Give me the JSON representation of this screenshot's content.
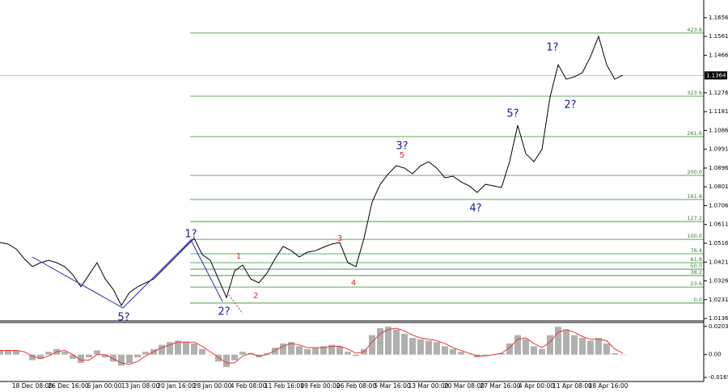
{
  "chart_data": [
    {
      "type": "line",
      "color": "#000000",
      "ylim": [
        1.0124,
        1.1745
      ],
      "yticks": [
        1.1656,
        1.1561,
        1.1466,
        1.1276,
        1.1181,
        1.1086,
        1.0991,
        1.0896,
        1.0801,
        1.0706,
        1.0611,
        1.0516,
        1.0421,
        1.0326,
        1.0231,
        1.0136
      ],
      "current_price": 1.1364,
      "time_labels": [
        "18 Dec 08:00",
        "26 Dec 16:00",
        "6 Jan 00:00",
        "13 Jan 08:00",
        "20 Jan 16:00",
        "28 Jan 00:00",
        "4 Feb 08:00",
        "11 Feb 16:00",
        "19 Feb 00:00",
        "26 Feb 08:00",
        "5 Mar 16:00",
        "13 Mar 00:00",
        "20 Mar 08:00",
        "27 Mar 16:00",
        "4 Apr 00:00",
        "11 Apr 08:00",
        "18 Apr 16:00"
      ],
      "values": [
        1.052,
        1.0512,
        1.0487,
        1.0438,
        1.0398,
        1.0418,
        1.043,
        1.0418,
        1.0398,
        1.0357,
        1.0296,
        1.0357,
        1.0418,
        1.0336,
        1.0283,
        1.0202,
        1.0267,
        1.0296,
        1.0316,
        1.0336,
        1.0377,
        1.0418,
        1.0459,
        1.05,
        1.0541,
        1.0459,
        1.043,
        1.0336,
        1.0242,
        1.0377,
        1.0406,
        1.0336,
        1.0316,
        1.0365,
        1.0438,
        1.05,
        1.0479,
        1.0447,
        1.0471,
        1.0479,
        1.0496,
        1.0512,
        1.052,
        1.0418,
        1.0398,
        1.0541,
        1.0724,
        1.0814,
        1.0867,
        1.0908,
        1.0896,
        1.0867,
        1.0908,
        1.0928,
        1.0896,
        1.0847,
        1.0855,
        1.0826,
        1.0806,
        1.0773,
        1.0814,
        1.0806,
        1.0798,
        1.0928,
        1.1112,
        1.0969,
        1.0928,
        1.099,
        1.1255,
        1.1418,
        1.1345,
        1.1357,
        1.1378,
        1.1459,
        1.1561,
        1.1418,
        1.1345,
        1.1365
      ],
      "fib_levels": [
        {
          "label": "423.6",
          "price": 1.1578
        },
        {
          "label": "323.6",
          "price": 1.1259
        },
        {
          "label": "261.6",
          "price": 1.1055
        },
        {
          "label": "200.0",
          "price": 1.0859
        },
        {
          "label": "161.8",
          "price": 1.0737
        },
        {
          "label": "127.2",
          "price": 1.0626
        },
        {
          "label": "100.0",
          "price": 1.0536
        },
        {
          "label": "76.4",
          "price": 1.0463
        },
        {
          "label": "61.8",
          "price": 1.0418
        },
        {
          "label": "50.0",
          "price": 1.0385
        },
        {
          "label": "38.2",
          "price": 1.0353
        },
        {
          "label": "23.6",
          "price": 1.0295
        },
        {
          "label": "0.0",
          "price": 1.0214
        }
      ],
      "fib_color": "#2e8b2e",
      "wave_labels": [
        {
          "text": "1?",
          "color": "#1a1aa6"
        },
        {
          "text": "2?",
          "color": "#1a1aa6"
        },
        {
          "text": "5?",
          "color": "#1a1aa6"
        },
        {
          "text": "1",
          "color": "#d32f2f"
        },
        {
          "text": "2",
          "color": "#d32f2f"
        },
        {
          "text": "3",
          "color": "#d32f2f"
        },
        {
          "text": "4",
          "color": "#d32f2f"
        },
        {
          "text": "5",
          "color": "#d32f2f"
        },
        {
          "text": "3?",
          "color": "#1a1aa6"
        },
        {
          "text": "4?",
          "color": "#1a1aa6"
        },
        {
          "text": "5?",
          "color": "#1a1aa6"
        },
        {
          "text": "1?",
          "color": "#1a1aa6"
        },
        {
          "text": "2?",
          "color": "#1a1aa6"
        }
      ]
    },
    {
      "type": "bar",
      "ylim": [
        -0.0182,
        0.0231
      ],
      "yticks": [
        0.0203,
        {
          "value": 0,
          "label": "0.00"
        },
        -0.0165
      ],
      "series": [
        {
          "color": "#b0b0b0",
          "values": [
            0.003,
            0.003,
            0.003,
            0,
            -0.004,
            -0.003,
            0.002,
            0.004,
            0.002,
            -0.003,
            -0.006,
            -0.002,
            0.003,
            -0.002,
            -0.005,
            -0.008,
            -0.006,
            -0.002,
            0.002,
            0.004,
            0.007,
            0.009,
            0.01,
            0.009,
            0.008,
            0.004,
            0,
            -0.005,
            -0.009,
            -0.004,
            0.002,
            0.001,
            -0.002,
            0.001,
            0.005,
            0.008,
            0.009,
            0.006,
            0.004,
            0.005,
            0.006,
            0.007,
            0.006,
            0.002,
            -0.001,
            0.004,
            0.014,
            0.019,
            0.02,
            0.018,
            0.015,
            0.012,
            0.011,
            0.01,
            0.009,
            0.006,
            0.004,
            0.002,
            0,
            -0.002,
            -0.001,
            0,
            0.001,
            0.008,
            0.014,
            0.011,
            0.006,
            0.004,
            0.014,
            0.02,
            0.018,
            0.014,
            0.012,
            0.01,
            0.012,
            0.008,
            0.001,
            0
          ]
        },
        {
          "type": "line",
          "color": "#e53935",
          "values": [
            0.003,
            0.003,
            0.003,
            0.002,
            -0.001,
            -0.003,
            -0.001,
            0.002,
            0.003,
            0,
            -0.004,
            -0.004,
            0,
            0,
            -0.003,
            -0.006,
            -0.007,
            -0.005,
            -0.001,
            0.002,
            0.005,
            0.007,
            0.009,
            0.009,
            0.009,
            0.006,
            0.002,
            -0.002,
            -0.006,
            -0.006,
            -0.001,
            0.001,
            -0.001,
            0,
            0.003,
            0.006,
            0.008,
            0.007,
            0.005,
            0.005,
            0.005,
            0.006,
            0.006,
            0.004,
            0.001,
            0.002,
            0.009,
            0.015,
            0.018,
            0.019,
            0.017,
            0.014,
            0.012,
            0.011,
            0.01,
            0.008,
            0.005,
            0.003,
            0.001,
            -0.001,
            -0.001,
            0,
            0.001,
            0.005,
            0.011,
            0.012,
            0.008,
            0.005,
            0.009,
            0.016,
            0.018,
            0.016,
            0.013,
            0.011,
            0.011,
            0.01,
            0.004,
            0.001
          ]
        }
      ]
    }
  ]
}
